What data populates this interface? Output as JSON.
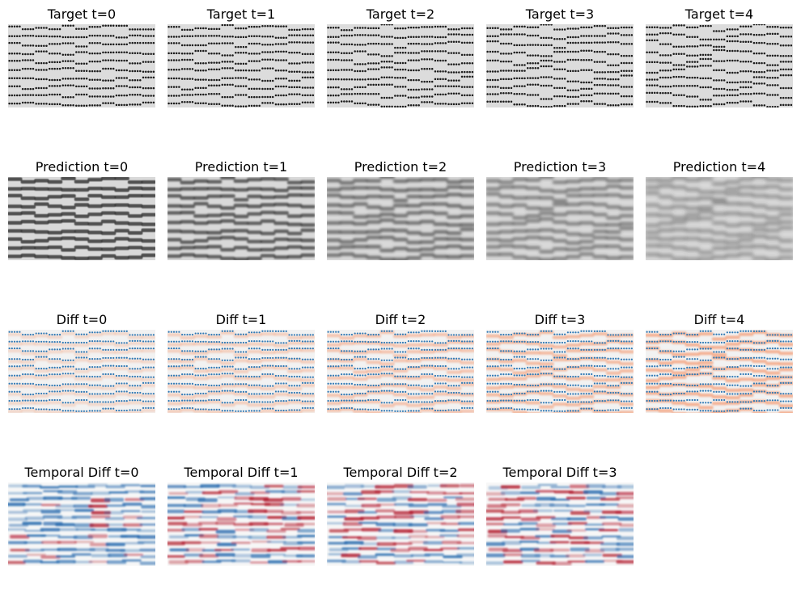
{
  "rows": [
    {
      "kind": "target",
      "titles": [
        "Target t=0",
        "Target t=1",
        "Target t=2",
        "Target t=3",
        "Target t=4"
      ]
    },
    {
      "kind": "prediction",
      "titles": [
        "Prediction t=0",
        "Prediction t=1",
        "Prediction t=2",
        "Prediction t=3",
        "Prediction t=4"
      ]
    },
    {
      "kind": "diff",
      "titles": [
        "Diff t=0",
        "Diff t=1",
        "Diff t=2",
        "Diff t=3",
        "Diff t=4"
      ]
    },
    {
      "kind": "temporal",
      "titles": [
        "Temporal Diff t=0",
        "Temporal Diff t=1",
        "Temporal Diff t=2",
        "Temporal Diff t=3"
      ]
    }
  ],
  "colors": {
    "target_bg": "#dcdcdc",
    "target_dot": "#1a1a1a",
    "prediction_light": "#d9d9d9",
    "prediction_dark": "#3a3a3a",
    "diff_bg": "#f2f2f2",
    "diff_blue": "#2f79b5",
    "diff_red": "#f4a582",
    "temporal_blue": "#2166ac",
    "temporal_red": "#b2182b",
    "temporal_white": "#f7f7f7"
  }
}
